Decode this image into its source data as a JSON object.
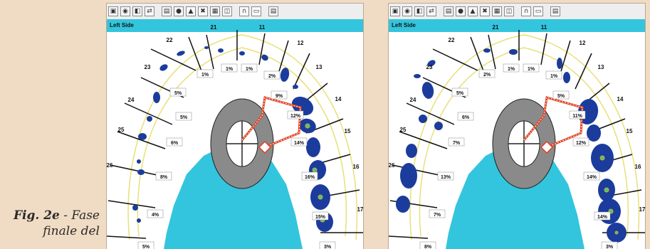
{
  "caption": {
    "figure_label": "Fig. 2e",
    "text_line1": " - Fase",
    "text_line2": "finale del"
  },
  "colors": {
    "background": "#f0dcc4",
    "arch_fill": "#ffffff",
    "outside": "#33c5dd",
    "arch_outline": "#e8e07a",
    "contact": "#1b3c9c",
    "center_ring": "#8a8a8a",
    "trajectory": "#e04020"
  },
  "toolbar_icons": [
    "select-icon",
    "circle-icon",
    "square-icon",
    "swap-icon",
    "chart-icon",
    "tooth-icon",
    "triangle-icon",
    "close-icon",
    "grid-icon",
    "graph-icon",
    "arch-icon",
    "save-icon",
    "print-icon"
  ],
  "panels": [
    {
      "side_label": "Left Side",
      "teeth": [
        "11",
        "12",
        "13",
        "14",
        "15",
        "16",
        "17",
        "21",
        "22",
        "23",
        "24",
        "25",
        "26"
      ],
      "percent_labels": [
        "1%",
        "1%",
        "2%",
        "1%",
        "9%",
        "12%",
        "14%",
        "16%",
        "15%",
        "5%",
        "5%",
        "6%",
        "8%",
        "4%",
        "5%",
        "3%"
      ]
    },
    {
      "side_label": "Left Side",
      "teeth": [
        "11",
        "12",
        "13",
        "14",
        "15",
        "16",
        "17",
        "21",
        "22",
        "23",
        "24",
        "25",
        "26"
      ],
      "percent_labels": [
        "1%",
        "1%",
        "1%",
        "2%",
        "5%",
        "11%",
        "12%",
        "14%",
        "14%",
        "5%",
        "6%",
        "7%",
        "13%",
        "7%",
        "8%",
        "3%"
      ]
    }
  ]
}
